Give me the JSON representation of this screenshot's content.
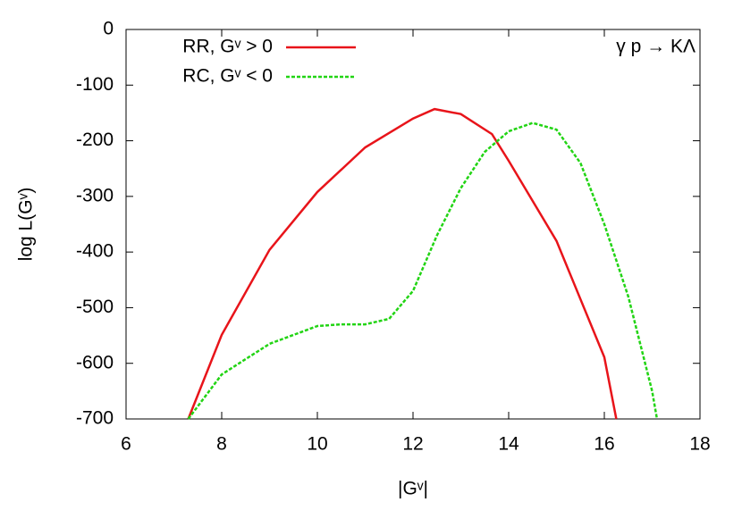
{
  "chart_data": {
    "type": "line",
    "annotation": "γ p → KΛ",
    "x_label": "|Gᵛ|",
    "y_label": "log L(Gᵛ)",
    "xlim": [
      6,
      18
    ],
    "xticks": [
      6,
      8,
      10,
      12,
      14,
      16,
      18
    ],
    "ylim": [
      -700,
      0
    ],
    "yticks": [
      0,
      -100,
      -200,
      -300,
      -400,
      -500,
      -600,
      -700
    ],
    "legend": "top-left",
    "series": [
      {
        "name": "RR, Gᵛ > 0",
        "color": "#e8141a",
        "dash": false,
        "x": [
          7.3,
          8,
          9,
          10,
          11,
          12,
          12.45,
          13,
          13.65,
          14,
          15,
          16,
          16.25
        ],
        "values": [
          -700,
          -549,
          -396,
          -292,
          -212,
          -160,
          -143,
          -152,
          -188,
          -236,
          -380,
          -589,
          -700
        ]
      },
      {
        "name": "RC, Gᵛ < 0",
        "color": "#22d414",
        "dash": true,
        "x": [
          7.3,
          8,
          9,
          10,
          10.5,
          11,
          11.5,
          12,
          12.5,
          13,
          13.5,
          14,
          14.5,
          15,
          15.5,
          16,
          16.5,
          17,
          17.1
        ],
        "values": [
          -700,
          -620,
          -565,
          -533,
          -530,
          -530,
          -520,
          -470,
          -370,
          -285,
          -220,
          -183,
          -168,
          -180,
          -240,
          -350,
          -480,
          -650,
          -700
        ]
      }
    ]
  }
}
